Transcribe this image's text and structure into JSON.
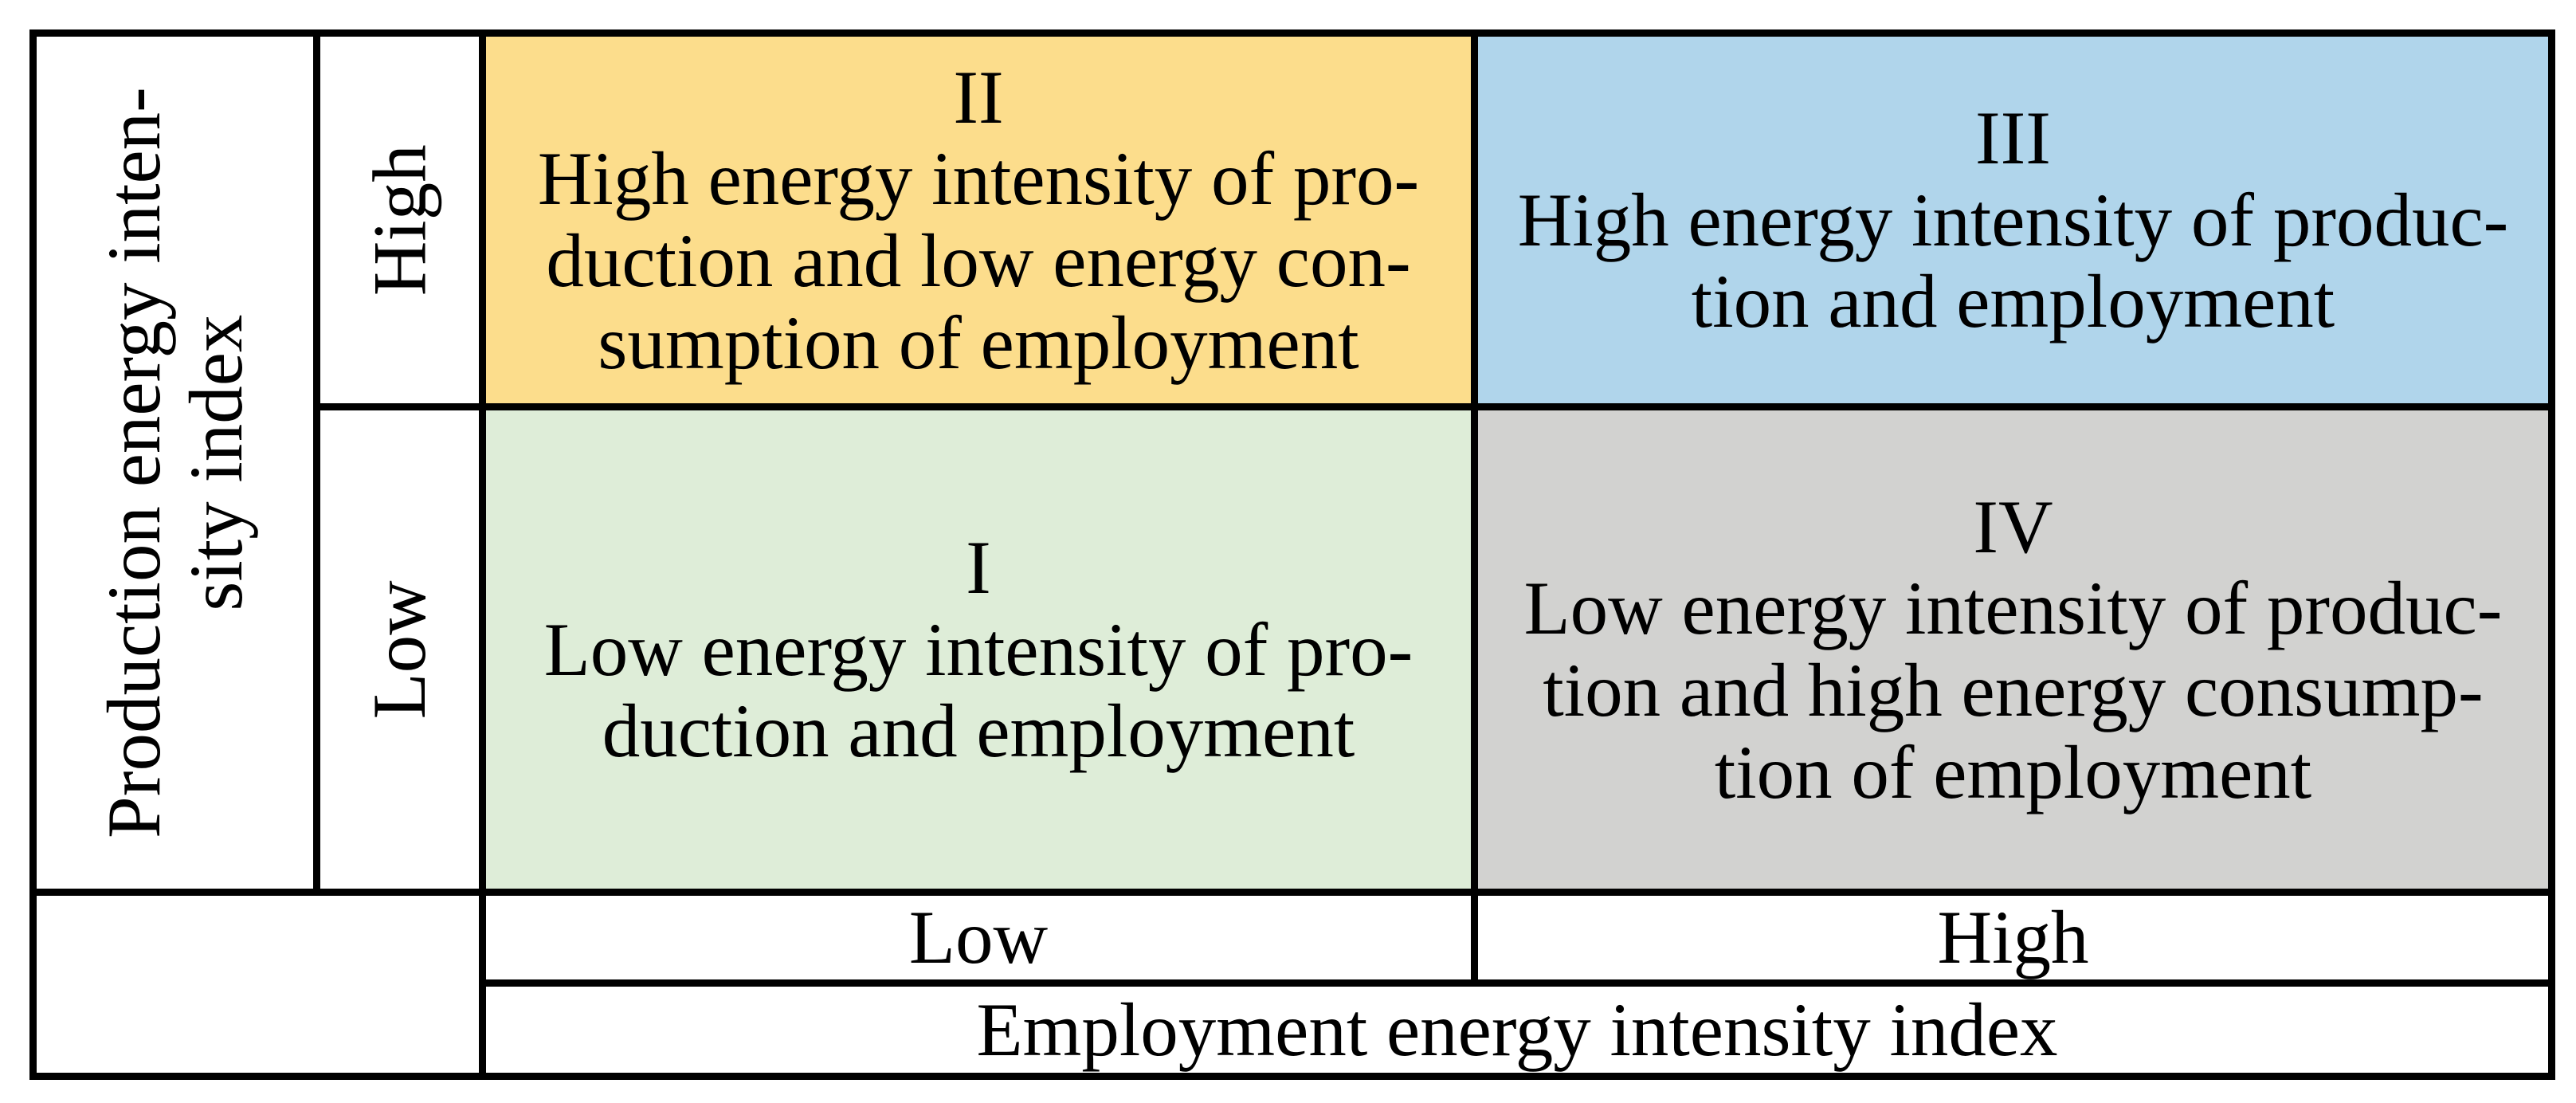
{
  "figure": {
    "background_color": "#FFFFFF",
    "border_color": "#000000",
    "y_axis": {
      "title": "Production energy inten-\nsity index",
      "high_label": "High",
      "low_label": "Low"
    },
    "x_axis": {
      "low_label": "Low",
      "high_label": "High",
      "title": "Employment energy intensity index"
    },
    "quadrants": [
      {
        "numeral": "II",
        "description": "High energy intensity of pro-\nduction and low energy con-\nsumption of employment",
        "color": "#FCDD8C",
        "position": "top-left",
        "production_energy_intensity": "High",
        "employment_energy_intensity": "Low"
      },
      {
        "numeral": "III",
        "description": "High energy intensity of produc-\ntion and employment",
        "color": "#B0D5EB",
        "position": "top-right",
        "production_energy_intensity": "High",
        "employment_energy_intensity": "High"
      },
      {
        "numeral": "I",
        "description": "Low energy intensity of pro-\nduction and employment",
        "color": "#DEEDD8",
        "position": "bottom-left",
        "production_energy_intensity": "Low",
        "employment_energy_intensity": "Low"
      },
      {
        "numeral": "IV",
        "description": "Low energy intensity of produc-\ntion and high energy consump-\ntion of employment",
        "color": "#D2D2D0",
        "position": "bottom-right",
        "production_energy_intensity": "Low",
        "employment_energy_intensity": "High"
      }
    ]
  }
}
